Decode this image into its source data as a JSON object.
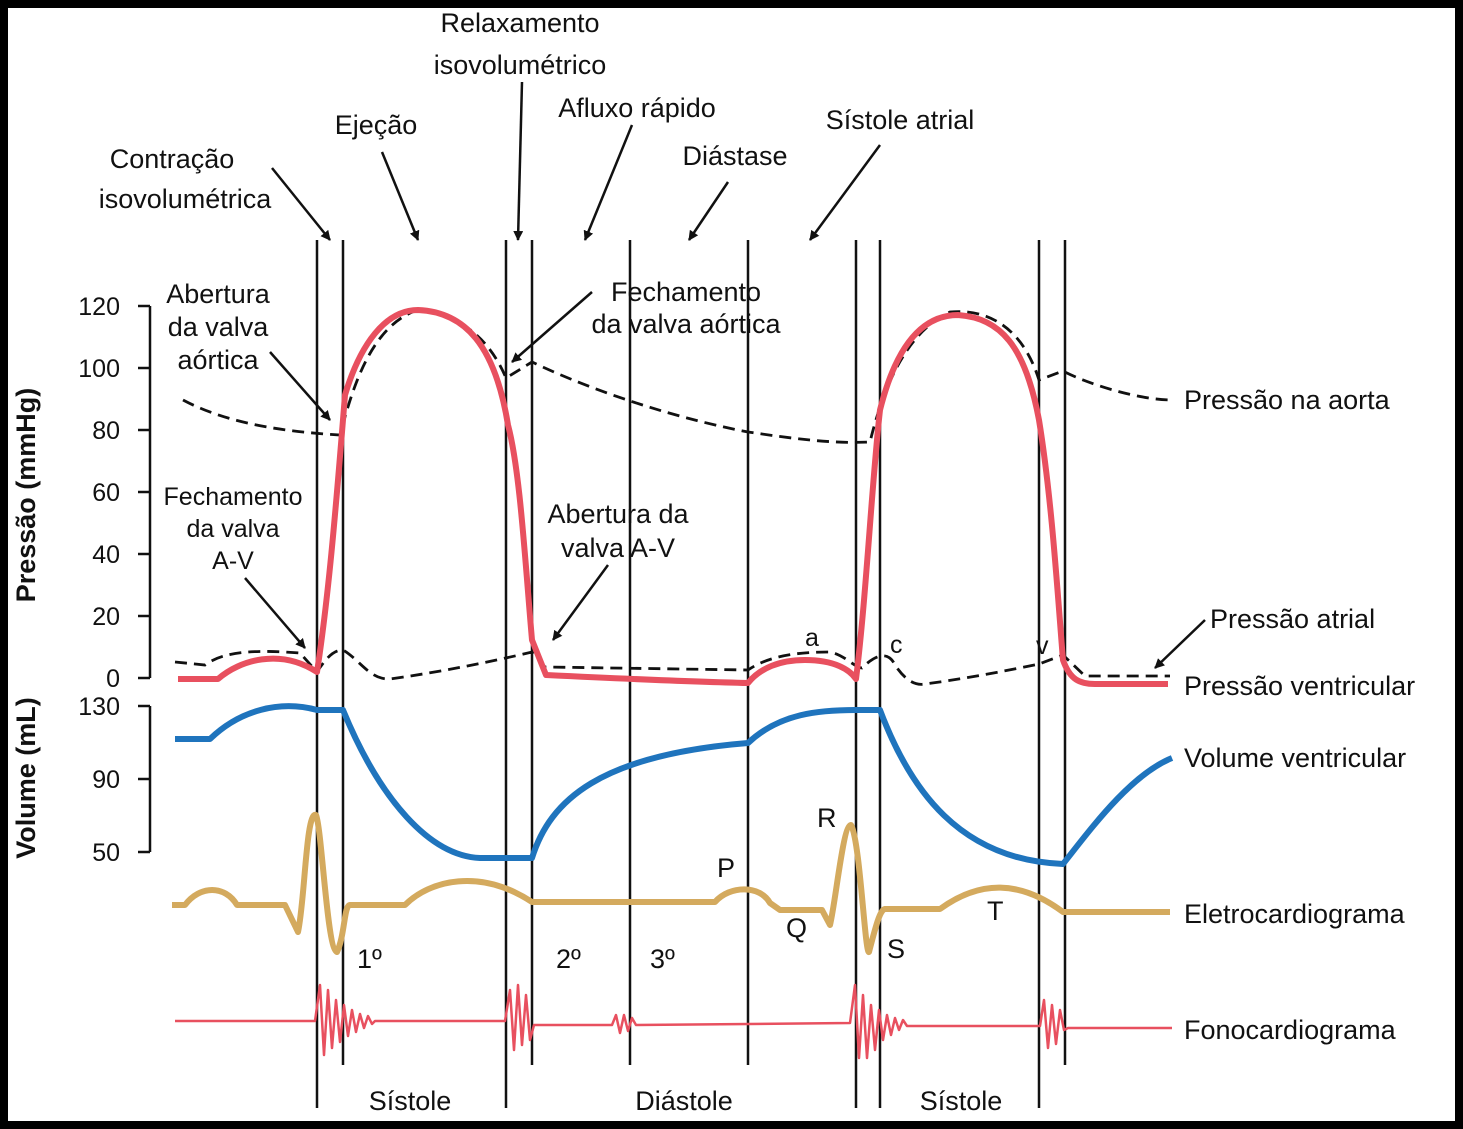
{
  "colors": {
    "ventricular_pressure": "#e8505f",
    "volume": "#1f74bd",
    "ecg": "#d4aa5e",
    "phono": "#e8505f",
    "aortic_atrial": "#111111"
  },
  "phases": {
    "isovolumetric_contraction": [
      "Contração",
      "isovolumétrica"
    ],
    "ejection": "Ejeção",
    "isovolumetric_relaxation": [
      "Relaxamento",
      "isovolumétrico"
    ],
    "rapid_inflow": "Afluxo rápido",
    "diastasis": "Diástase",
    "atrial_systole": "Sístole atrial"
  },
  "annotations": {
    "aortic_valve_opening": [
      "Abertura",
      "da valva",
      "aórtica"
    ],
    "aortic_valve_closing": [
      "Fechamento",
      "da valva aórtica"
    ],
    "av_valve_closing": [
      "Fechamento",
      "da valva",
      "A-V"
    ],
    "av_valve_opening": [
      "Abertura da",
      "valva A-V"
    ]
  },
  "axes": {
    "pressure_title": "Pressão (mmHg)",
    "pressure_ticks": [
      "120",
      "100",
      "80",
      "60",
      "40",
      "20",
      "0"
    ],
    "volume_title": "Volume (mL)",
    "volume_ticks": [
      "130",
      "90",
      "50"
    ]
  },
  "curve_labels": {
    "aortic": "Pressão na aorta",
    "atrial": "Pressão atrial",
    "ventricular": "Pressão ventricular",
    "volume": "Volume ventricular",
    "ecg": "Eletrocardiograma",
    "phono": "Fonocardiograma"
  },
  "waves": {
    "a": "a",
    "c": "c",
    "v": "v",
    "P": "P",
    "Q": "Q",
    "R": "R",
    "S": "S",
    "T": "T"
  },
  "heart_sounds": {
    "first": "1º",
    "second": "2º",
    "third": "3º"
  },
  "periods": {
    "systole1": "Sístole",
    "diastole": "Diástole",
    "systole2": "Sístole"
  }
}
